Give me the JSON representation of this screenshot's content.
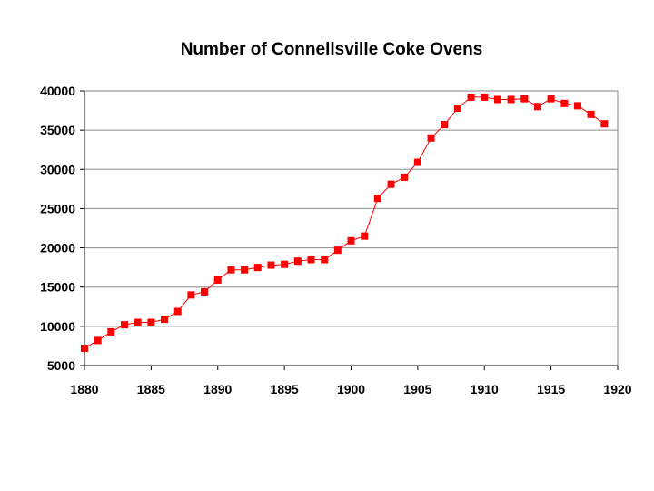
{
  "chart_data": {
    "type": "line",
    "title": "Number of Connellsville Coke Ovens",
    "xlabel": "",
    "ylabel": "",
    "xlim": [
      1880,
      1920
    ],
    "ylim": [
      5000,
      40000
    ],
    "x_ticks": [
      1880,
      1885,
      1890,
      1895,
      1900,
      1905,
      1910,
      1915,
      1920
    ],
    "y_ticks": [
      5000,
      10000,
      15000,
      20000,
      25000,
      30000,
      35000,
      40000
    ],
    "grid": true,
    "legend": "none",
    "series": [
      {
        "color": "#ff0000",
        "marker": "square",
        "x": [
          1880,
          1881,
          1882,
          1883,
          1884,
          1885,
          1886,
          1887,
          1888,
          1889,
          1890,
          1891,
          1892,
          1893,
          1894,
          1895,
          1896,
          1897,
          1898,
          1899,
          1900,
          1901,
          1902,
          1903,
          1904,
          1905,
          1906,
          1907,
          1908,
          1909,
          1910,
          1911,
          1912,
          1913,
          1914,
          1915,
          1916,
          1917,
          1918,
          1919
        ],
        "values": [
          7200,
          8200,
          9300,
          10200,
          10500,
          10500,
          10900,
          11900,
          14000,
          14400,
          15900,
          17200,
          17200,
          17500,
          17800,
          17900,
          18300,
          18500,
          18500,
          19700,
          20900,
          21500,
          26300,
          28100,
          29000,
          30900,
          34000,
          35700,
          37800,
          39200,
          39200,
          38900,
          38900,
          39000,
          38000,
          39000,
          38400,
          38100,
          37000,
          35800
        ]
      }
    ]
  }
}
